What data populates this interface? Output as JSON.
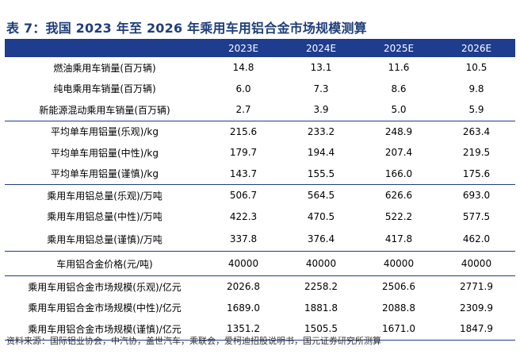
{
  "title": "表 7：我国 2023 年至 2026 年乘用车用铝合金市场规模测算",
  "header": {
    "label": "",
    "years": [
      "2023E",
      "2024E",
      "2025E",
      "2026E"
    ]
  },
  "rows": [
    {
      "label": "燃油乘用车销量(百万辆)",
      "values": [
        "14.8",
        "13.1",
        "11.6",
        "10.5"
      ]
    },
    {
      "label": "纯电乘用车销量(百万辆)",
      "values": [
        "6.0",
        "7.3",
        "8.6",
        "9.8"
      ]
    },
    {
      "label": "新能源混动乘用车销量(百万辆)",
      "values": [
        "2.7",
        "3.9",
        "5.0",
        "5.9"
      ]
    },
    {
      "label": "平均单车用铝量(乐观)/kg",
      "values": [
        "215.6",
        "233.2",
        "248.9",
        "263.4"
      ]
    },
    {
      "label": "平均单车用铝量(中性)/kg",
      "values": [
        "179.7",
        "194.4",
        "207.4",
        "219.5"
      ]
    },
    {
      "label": "平均单车用铝量(谨慎)/kg",
      "values": [
        "143.7",
        "155.5",
        "166.0",
        "175.6"
      ]
    },
    {
      "label": "乘用车用铝总量(乐观)/万吨",
      "values": [
        "506.7",
        "564.5",
        "626.6",
        "693.0"
      ]
    },
    {
      "label": "乘用车用铝总量(中性)/万吨",
      "values": [
        "422.3",
        "470.5",
        "522.2",
        "577.5"
      ]
    },
    {
      "label": "乘用车用铝总量(谨慎)/万吨",
      "values": [
        "337.8",
        "376.4",
        "417.8",
        "462.0"
      ]
    },
    {
      "label": "车用铝合金价格(元/吨)",
      "values": [
        "40000",
        "40000",
        "40000",
        "40000"
      ]
    },
    {
      "label": "乘用车用铝合金市场规模(乐观)/亿元",
      "values": [
        "2026.8",
        "2258.2",
        "2506.6",
        "2771.9"
      ]
    },
    {
      "label": "乘用车用铝合金市场规模(中性)/亿元",
      "values": [
        "1689.0",
        "1881.8",
        "2088.8",
        "2309.9"
      ]
    },
    {
      "label": "乘用车用铝合金市场规模(谨慎)/亿元",
      "values": [
        "1351.2",
        "1505.5",
        "1671.0",
        "1847.9"
      ]
    }
  ],
  "source": "资料来源：国际铝业协会，中汽协，盖世汽车，乘联会，爱柯迪招股说明书，国元证券研究所测算",
  "colors": {
    "header_bg": "#1f3d8e",
    "title": "#1f3e7a",
    "rule": "#1f3d8e"
  }
}
